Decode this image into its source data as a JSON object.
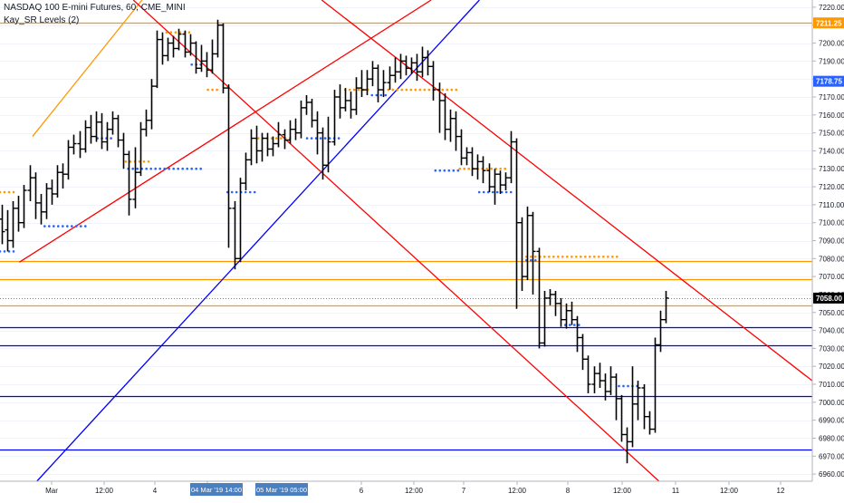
{
  "header": {
    "symbol_title": "NASDAQ 100 E-mini Futures, 60, CME_MINI",
    "indicator": "Kay_SR Levels (2)"
  },
  "colors": {
    "bar": "#000000",
    "resistance_level": "#ff9800",
    "support_level": "#0000ff",
    "channel_red": "#ff0000",
    "trend_blue": "#0000ff",
    "trend_orange": "#ff9800",
    "sr_dot_orange": "#ff9800",
    "sr_dot_blue": "#2962ff",
    "price_badge": "#000000",
    "time_badge": "#4a7fc1"
  },
  "chart_data": {
    "type": "ohlc",
    "title": "NASDAQ 100 E-mini Futures, 60, CME_MINI",
    "y_axis": {
      "ticks": [
        7220,
        7210,
        7200,
        7190,
        7180,
        7170,
        7160,
        7150,
        7140,
        7130,
        7120,
        7110,
        7100,
        7090,
        7080,
        7070,
        7060,
        7050,
        7040,
        7030,
        7020,
        7010,
        7000,
        6990,
        6980,
        6970,
        6960
      ],
      "range": [
        6956,
        7224
      ],
      "price_labels": [
        {
          "value": 7211.25,
          "text": "7211.25",
          "color": "#ff9800"
        },
        {
          "value": 7178.75,
          "text": "7178.75",
          "color": "#2962ff"
        },
        {
          "value": 7058.0,
          "text": "7058.00",
          "color": "#000000"
        }
      ]
    },
    "x_axis": {
      "tick_labels": [
        "Mar",
        "12:00",
        "4",
        "12:00",
        "6",
        "12:00",
        "7",
        "12:00",
        "8",
        "12:00",
        "11",
        "12:00",
        "12"
      ],
      "crosshair_labels": [
        "04 Mar '19  14:00",
        "05 Mar '19  05:00"
      ]
    },
    "horizontal_levels": [
      {
        "price": 7211.25,
        "color": "#ff9800"
      },
      {
        "price": 7078.5,
        "color": "#ff9800"
      },
      {
        "price": 7068.5,
        "color": "#ff9800"
      },
      {
        "price": 7054.0,
        "color": "#ff9800"
      },
      {
        "price": 7042.0,
        "color": "#0000ff"
      },
      {
        "price": 7031.75,
        "color": "#0000ff"
      },
      {
        "price": 7003.5,
        "color": "#0000ff"
      },
      {
        "price": 6973.5,
        "color": "#0000ff"
      }
    ],
    "trend_lines": [
      {
        "color": "#ff9800",
        "p1": [
          "Mar 1 07:00",
          7148
        ],
        "p2": [
          "Mar 4 08:00",
          7224
        ]
      },
      {
        "color": "#ff0000",
        "p1": [
          "Mar 1 04:00",
          7078
        ],
        "p2": [
          "Mar 7 02:00",
          7224
        ]
      },
      {
        "color": "#0000ff",
        "p1": [
          "Mar 1 08:00",
          6956
        ],
        "p2": [
          "Mar 7 13:00",
          7224
        ]
      },
      {
        "color": "#ff0000",
        "p1": [
          "Mar 4 06:00",
          7224
        ],
        "p2": [
          "Mar 11 06:00",
          6956
        ]
      },
      {
        "color": "#ff0000",
        "p1": [
          "Mar 6 01:00",
          7224
        ],
        "p2": [
          "Mar 12 18:00",
          7010
        ]
      }
    ],
    "sr_dots": [
      {
        "color": "#ff9800",
        "price": 7206,
        "from": 0.205,
        "to": 0.236
      },
      {
        "color": "#2962ff",
        "price": 7188,
        "from": 0.236,
        "to": 0.252
      },
      {
        "color": "#ff9800",
        "price": 7174,
        "from": 0.256,
        "to": 0.268
      },
      {
        "color": "#ff9800",
        "price": 7117,
        "from": 0.0,
        "to": 0.018
      },
      {
        "color": "#2962ff",
        "price": 7084,
        "from": 0.0,
        "to": 0.022
      },
      {
        "color": "#2962ff",
        "price": 7098,
        "from": 0.055,
        "to": 0.108
      },
      {
        "color": "#2962ff",
        "price": 7147,
        "from": 0.12,
        "to": 0.138
      },
      {
        "color": "#ff9800",
        "price": 7134,
        "from": 0.155,
        "to": 0.185
      },
      {
        "color": "#2962ff",
        "price": 7130,
        "from": 0.158,
        "to": 0.248
      },
      {
        "color": "#2962ff",
        "price": 7117,
        "from": 0.28,
        "to": 0.318
      },
      {
        "color": "#ff9800",
        "price": 7147,
        "from": 0.318,
        "to": 0.362
      },
      {
        "color": "#2962ff",
        "price": 7147,
        "from": 0.378,
        "to": 0.422
      },
      {
        "color": "#ff9800",
        "price": 7174,
        "from": 0.425,
        "to": 0.458
      },
      {
        "color": "#2962ff",
        "price": 7171,
        "from": 0.458,
        "to": 0.478
      },
      {
        "color": "#ff9800",
        "price": 7174,
        "from": 0.478,
        "to": 0.565
      },
      {
        "color": "#2962ff",
        "price": 7129,
        "from": 0.536,
        "to": 0.566
      },
      {
        "color": "#ff9800",
        "price": 7130,
        "from": 0.566,
        "to": 0.625
      },
      {
        "color": "#2962ff",
        "price": 7117,
        "from": 0.59,
        "to": 0.634
      },
      {
        "color": "#ff9800",
        "price": 7081,
        "from": 0.648,
        "to": 0.765
      },
      {
        "color": "#2962ff",
        "price": 7079,
        "from": 0.648,
        "to": 0.66
      },
      {
        "color": "#2962ff",
        "price": 7043,
        "from": 0.696,
        "to": 0.718
      },
      {
        "color": "#2962ff",
        "price": 7009,
        "from": 0.762,
        "to": 0.785
      }
    ],
    "ohlc": [
      [
        7102,
        7095,
        7110,
        7088
      ],
      [
        7096,
        7090,
        7107,
        7084
      ],
      [
        7090,
        7108,
        7112,
        7086
      ],
      [
        7108,
        7100,
        7115,
        7095
      ],
      [
        7100,
        7118,
        7121,
        7097
      ],
      [
        7118,
        7125,
        7132,
        7112
      ],
      [
        7125,
        7111,
        7128,
        7102
      ],
      [
        7111,
        7106,
        7116,
        7099
      ],
      [
        7106,
        7119,
        7122,
        7102
      ],
      [
        7119,
        7116,
        7124,
        7110
      ],
      [
        7116,
        7128,
        7132,
        7114
      ],
      [
        7128,
        7127,
        7133,
        7119
      ],
      [
        7127,
        7142,
        7146,
        7124
      ],
      [
        7142,
        7144,
        7149,
        7138
      ],
      [
        7144,
        7141,
        7151,
        7136
      ],
      [
        7141,
        7153,
        7157,
        7139
      ],
      [
        7153,
        7148,
        7160,
        7144
      ],
      [
        7148,
        7156,
        7162,
        7145
      ],
      [
        7156,
        7145,
        7161,
        7141
      ],
      [
        7145,
        7152,
        7156,
        7140
      ],
      [
        7152,
        7158,
        7162,
        7149
      ],
      [
        7158,
        7146,
        7160,
        7142
      ],
      [
        7146,
        7138,
        7150,
        7130
      ],
      [
        7138,
        7113,
        7140,
        7104
      ],
      [
        7113,
        7128,
        7142,
        7108
      ],
      [
        7128,
        7152,
        7156,
        7126
      ],
      [
        7152,
        7157,
        7163,
        7148
      ],
      [
        7157,
        7176,
        7180,
        7152
      ],
      [
        7176,
        7202,
        7207,
        7175
      ],
      [
        7202,
        7193,
        7206,
        7188
      ],
      [
        7193,
        7200,
        7203,
        7190
      ],
      [
        7200,
        7197,
        7204,
        7192
      ],
      [
        7197,
        7205,
        7208,
        7196
      ],
      [
        7205,
        7195,
        7207,
        7192
      ],
      [
        7195,
        7200,
        7205,
        7193
      ],
      [
        7200,
        7186,
        7201,
        7183
      ],
      [
        7186,
        7190,
        7199,
        7184
      ],
      [
        7190,
        7185,
        7195,
        7181
      ],
      [
        7185,
        7194,
        7202,
        7183
      ],
      [
        7194,
        7210,
        7213,
        7192
      ],
      [
        7210,
        7175,
        7211,
        7172
      ],
      [
        7175,
        7108,
        7177,
        7086
      ],
      [
        7108,
        7080,
        7112,
        7074
      ],
      [
        7080,
        7122,
        7125,
        7078
      ],
      [
        7122,
        7135,
        7139,
        7118
      ],
      [
        7135,
        7147,
        7152,
        7132
      ],
      [
        7147,
        7140,
        7154,
        7133
      ],
      [
        7140,
        7147,
        7150,
        7134
      ],
      [
        7147,
        7141,
        7150,
        7137
      ],
      [
        7141,
        7144,
        7148,
        7137
      ],
      [
        7144,
        7149,
        7156,
        7142
      ],
      [
        7149,
        7146,
        7152,
        7141
      ],
      [
        7146,
        7152,
        7157,
        7144
      ],
      [
        7152,
        7150,
        7158,
        7146
      ],
      [
        7150,
        7164,
        7168,
        7147
      ],
      [
        7164,
        7167,
        7171,
        7160
      ],
      [
        7167,
        7157,
        7169,
        7153
      ],
      [
        7157,
        7150,
        7162,
        7138
      ],
      [
        7150,
        7132,
        7153,
        7124
      ],
      [
        7132,
        7145,
        7159,
        7128
      ],
      [
        7145,
        7170,
        7174,
        7143
      ],
      [
        7170,
        7164,
        7177,
        7158
      ],
      [
        7164,
        7168,
        7175,
        7162
      ],
      [
        7168,
        7163,
        7173,
        7158
      ],
      [
        7163,
        7175,
        7181,
        7160
      ],
      [
        7175,
        7174,
        7185,
        7170
      ],
      [
        7174,
        7180,
        7185,
        7171
      ],
      [
        7180,
        7186,
        7190,
        7176
      ],
      [
        7186,
        7174,
        7188,
        7167
      ],
      [
        7174,
        7178,
        7185,
        7170
      ],
      [
        7178,
        7182,
        7187,
        7174
      ],
      [
        7182,
        7184,
        7192,
        7178
      ],
      [
        7184,
        7190,
        7194,
        7180
      ],
      [
        7190,
        7186,
        7193,
        7182
      ],
      [
        7186,
        7189,
        7192,
        7183
      ],
      [
        7189,
        7184,
        7194,
        7179
      ],
      [
        7184,
        7192,
        7198,
        7181
      ],
      [
        7192,
        7187,
        7196,
        7182
      ],
      [
        7187,
        7174,
        7190,
        7168
      ],
      [
        7174,
        7168,
        7178,
        7150
      ],
      [
        7168,
        7152,
        7172,
        7146
      ],
      [
        7152,
        7158,
        7163,
        7145
      ],
      [
        7158,
        7148,
        7162,
        7140
      ],
      [
        7148,
        7136,
        7152,
        7132
      ],
      [
        7136,
        7139,
        7142,
        7132
      ],
      [
        7139,
        7130,
        7142,
        7126
      ],
      [
        7130,
        7134,
        7138,
        7124
      ],
      [
        7134,
        7129,
        7137,
        7122
      ],
      [
        7129,
        7120,
        7133,
        7117
      ],
      [
        7120,
        7127,
        7130,
        7110
      ],
      [
        7127,
        7121,
        7129,
        7116
      ],
      [
        7121,
        7125,
        7128,
        7118
      ],
      [
        7125,
        7145,
        7151,
        7122
      ],
      [
        7145,
        7100,
        7147,
        7052
      ],
      [
        7100,
        7070,
        7103,
        7062
      ],
      [
        7070,
        7104,
        7109,
        7068
      ],
      [
        7104,
        7084,
        7106,
        7060
      ],
      [
        7084,
        7033,
        7086,
        7030
      ],
      [
        7033,
        7058,
        7062,
        7031
      ],
      [
        7058,
        7060,
        7063,
        7054
      ],
      [
        7060,
        7055,
        7062,
        7048
      ],
      [
        7055,
        7046,
        7058,
        7042
      ],
      [
        7046,
        7051,
        7055,
        7041
      ],
      [
        7051,
        7046,
        7056,
        7043
      ],
      [
        7046,
        7036,
        7048,
        7028
      ],
      [
        7036,
        7024,
        7038,
        7018
      ],
      [
        7024,
        7010,
        7026,
        7005
      ],
      [
        7010,
        7016,
        7020,
        7005
      ],
      [
        7016,
        7012,
        7022,
        7008
      ],
      [
        7012,
        7006,
        7016,
        7001
      ],
      [
        7006,
        7014,
        7020,
        7004
      ],
      [
        7014,
        7002,
        7016,
        6990
      ],
      [
        7002,
        6982,
        7004,
        6978
      ],
      [
        6982,
        6978,
        6986,
        6966
      ],
      [
        6978,
        6999,
        7020,
        6975
      ],
      [
        6999,
        7008,
        7012,
        6990
      ],
      [
        7008,
        6992,
        7010,
        6985
      ],
      [
        6992,
        6985,
        6995,
        6982
      ],
      [
        6985,
        7032,
        7036,
        6983
      ],
      [
        7032,
        7046,
        7051,
        7028
      ],
      [
        7046,
        7058,
        7062,
        7044
      ]
    ]
  }
}
